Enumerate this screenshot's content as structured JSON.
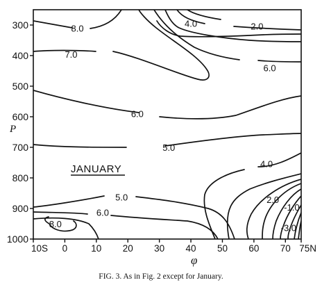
{
  "chart_data": {
    "type": "contour",
    "title": "",
    "annotation": "JANUARY",
    "xlabel": "φ",
    "ylabel": "P",
    "caption": "FIG. 3. As in Fig. 2 except for January.",
    "x_range": [
      -10,
      75
    ],
    "y_range": [
      250,
      1000
    ],
    "y_inverted": true,
    "x_ticks": [
      -10,
      0,
      10,
      20,
      30,
      40,
      50,
      60,
      70,
      75
    ],
    "x_tick_labels": [
      "10S",
      "0",
      "10",
      "20",
      "30",
      "40",
      "50",
      "60",
      "70",
      "75N"
    ],
    "y_ticks": [
      300,
      400,
      500,
      600,
      700,
      800,
      900,
      1000
    ],
    "y_tick_labels": [
      "300",
      "400",
      "500",
      "600",
      "700",
      "800",
      "900",
      "1000"
    ],
    "contour_labels": [
      {
        "text": "8.0",
        "x": 4,
        "y": 310
      },
      {
        "text": "7.0",
        "x": 2,
        "y": 395
      },
      {
        "text": "4.0",
        "x": 40,
        "y": 294
      },
      {
        "text": "2.0",
        "x": 61,
        "y": 303
      },
      {
        "text": "6.0",
        "x": 65,
        "y": 440
      },
      {
        "text": "6.0",
        "x": 23,
        "y": 590
      },
      {
        "text": "5.0",
        "x": 33,
        "y": 700
      },
      {
        "text": "4.0",
        "x": 64,
        "y": 753
      },
      {
        "text": "5.0",
        "x": 18,
        "y": 863
      },
      {
        "text": "6.0",
        "x": 12,
        "y": 913
      },
      {
        "text": "8.0",
        "x": -3,
        "y": 950
      },
      {
        "text": "2.0",
        "x": 66,
        "y": 870
      },
      {
        "text": "-1.0",
        "x": 72,
        "y": 895
      },
      {
        "text": "-3.0",
        "x": 71,
        "y": 963
      }
    ],
    "grid": false,
    "legend": "none"
  }
}
